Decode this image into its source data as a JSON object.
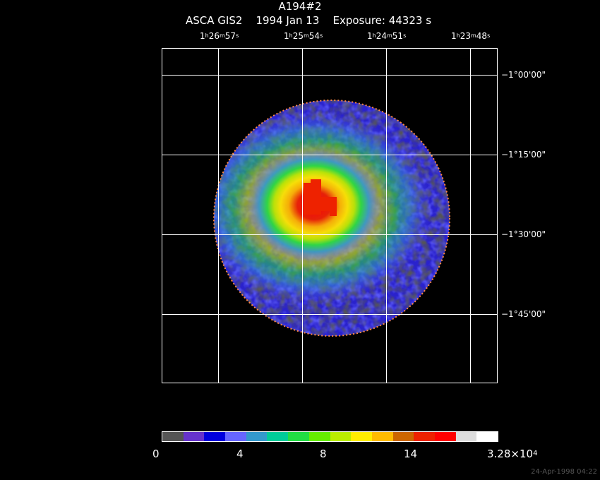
{
  "header": {
    "title": "A194#2",
    "subtitle": "ASCA GIS2    1994 Jan 13    Exposure: 44323 s"
  },
  "ra_ticks": [
    {
      "h": "1",
      "m": "26",
      "s": "57"
    },
    {
      "h": "1",
      "m": "25",
      "s": "54"
    },
    {
      "h": "1",
      "m": "24",
      "s": "51"
    },
    {
      "h": "1",
      "m": "23",
      "s": "48"
    }
  ],
  "dec_ticks": [
    "−1°00'00\"",
    "−1°15'00\"",
    "−1°30'00\"",
    "−1°45'00\""
  ],
  "colorbar": {
    "colors": [
      "#555555",
      "#6633cc",
      "#0000dd",
      "#6666ff",
      "#3399cc",
      "#00cc99",
      "#22dd44",
      "#66ee00",
      "#bbee00",
      "#ffee00",
      "#ffbb00",
      "#cc6600",
      "#ee2200",
      "#ff0000",
      "#dddddd",
      "#ffffff"
    ],
    "labels": {
      "l0": "0",
      "l4": "4",
      "l8": "8",
      "l14": "14",
      "lmax_base": "3.28×10",
      "lmax_exp": "4"
    }
  },
  "stamp": "24-Apr-1998 04:22"
}
